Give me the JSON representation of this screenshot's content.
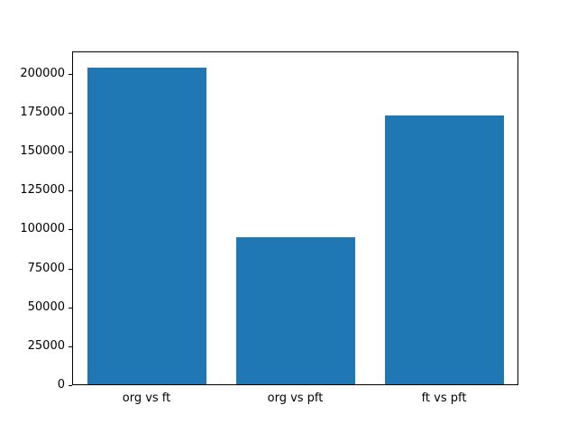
{
  "chart_data": {
    "type": "bar",
    "categories": [
      "org vs ft",
      "org vs pft",
      "ft vs pft"
    ],
    "values": [
      204000,
      95000,
      173000
    ],
    "title": "",
    "xlabel": "",
    "ylabel": "",
    "ylim": [
      0,
      214300
    ],
    "yticks": [
      0,
      25000,
      50000,
      75000,
      100000,
      125000,
      150000,
      175000,
      200000
    ],
    "bar_color": "#1f77b4",
    "spine_color": "#000000",
    "background_color": "#ffffff",
    "grid": false,
    "legend_position": "none",
    "bar_width_fraction": 0.8
  }
}
